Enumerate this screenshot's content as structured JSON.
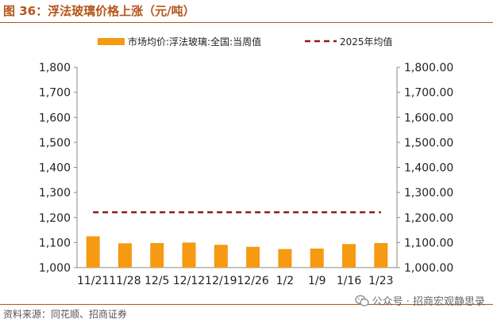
{
  "figure_title": "图 36：浮法玻璃价格上涨（元/吨）",
  "source": "资料来源：同花顺、招商证券",
  "watermark": {
    "text": "公众号 · 招商宏观静思录",
    "icon": "wechat-icon"
  },
  "colors": {
    "title": "#b5551a",
    "bar": "#f59a12",
    "dashed_line": "#8b1a1a",
    "axis": "#888888"
  },
  "chart_data": {
    "type": "bar",
    "categories": [
      "11/21",
      "11/28",
      "12/5",
      "12/12",
      "12/19",
      "12/26",
      "1/2",
      "1/9",
      "1/16",
      "1/23"
    ],
    "series": [
      {
        "name": "市场均价:浮法玻璃:全国:当周值",
        "type": "bar",
        "values": [
          1125,
          1097,
          1098,
          1100,
          1091,
          1083,
          1074,
          1076,
          1094,
          1098
        ]
      },
      {
        "name": "2025年均值",
        "type": "dashed-line",
        "values": [
          1221,
          1221,
          1221,
          1221,
          1221,
          1221,
          1221,
          1221,
          1221,
          1221
        ]
      }
    ],
    "ylim": [
      1000,
      1800
    ],
    "yticks_left": [
      "1,000",
      "1,100",
      "1,200",
      "1,300",
      "1,400",
      "1,500",
      "1,600",
      "1,700",
      "1,800"
    ],
    "yticks_right": [
      "1,000.00",
      "1,100.00",
      "1,200.00",
      "1,300.00",
      "1,400.00",
      "1,500.00",
      "1,600.00",
      "1,700.00",
      "1,800.00"
    ],
    "legend_position": "top",
    "grid": false
  }
}
